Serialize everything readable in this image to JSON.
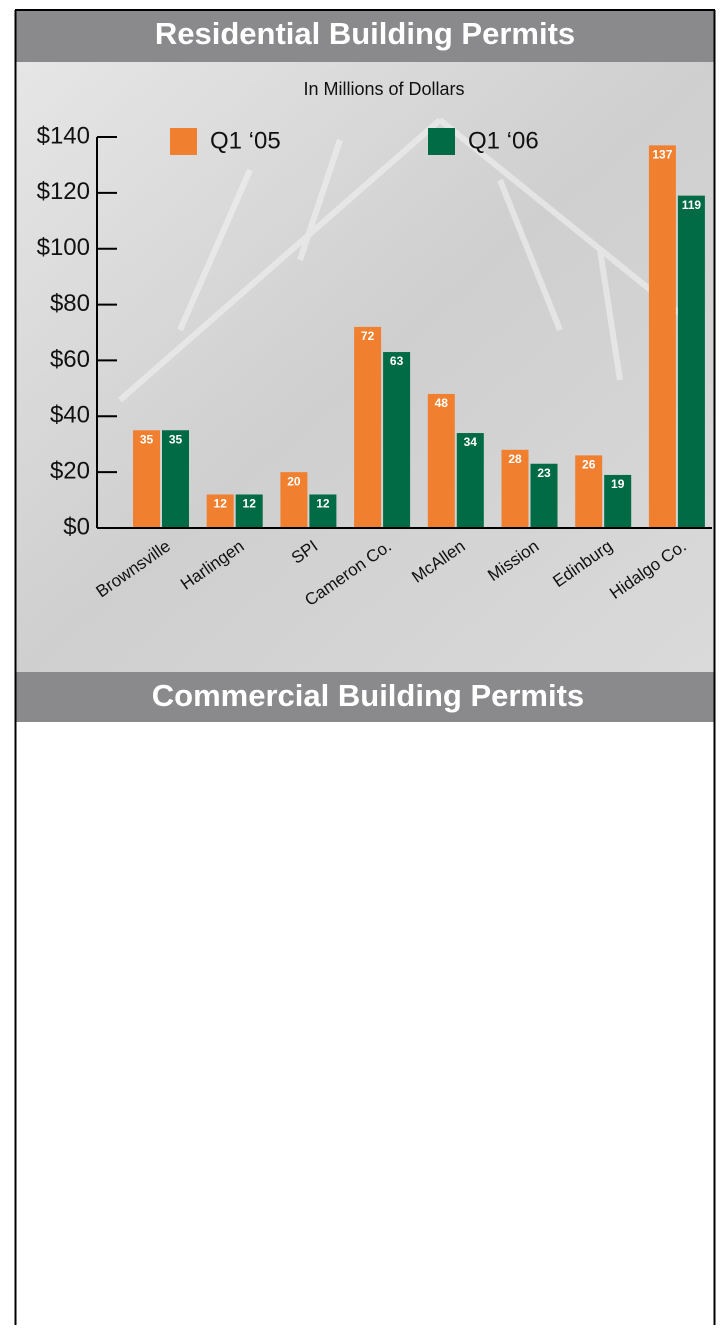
{
  "chart_data": {
    "type": "bar",
    "title": "Residential Building Permits",
    "subtitle": "In Millions of Dollars",
    "categories": [
      "Brownsville",
      "Harlingen",
      "SPI",
      "Cameron Co.",
      "McAllen",
      "Mission",
      "Edinburg",
      "Hidalgo Co."
    ],
    "series": [
      {
        "name": "Q1 ‘05",
        "color": "#f08030",
        "values": [
          35,
          12,
          20,
          72,
          48,
          28,
          26,
          137
        ]
      },
      {
        "name": "Q1 ‘06",
        "color": "#006b45",
        "values": [
          35,
          12,
          12,
          63,
          34,
          23,
          19,
          119
        ]
      }
    ],
    "ylim": [
      0,
      140
    ],
    "yticks": [
      {
        "value": 0,
        "label": "$0"
      },
      {
        "value": 20,
        "label": "$20"
      },
      {
        "value": 40,
        "label": "$40"
      },
      {
        "value": 60,
        "label": "$60"
      },
      {
        "value": 80,
        "label": "$80"
      },
      {
        "value": 100,
        "label": "$100"
      },
      {
        "value": 120,
        "label": "$120"
      },
      {
        "value": 140,
        "label": "$140"
      }
    ],
    "legend": "top"
  },
  "next_section": {
    "title": "Commercial Building Permits"
  }
}
